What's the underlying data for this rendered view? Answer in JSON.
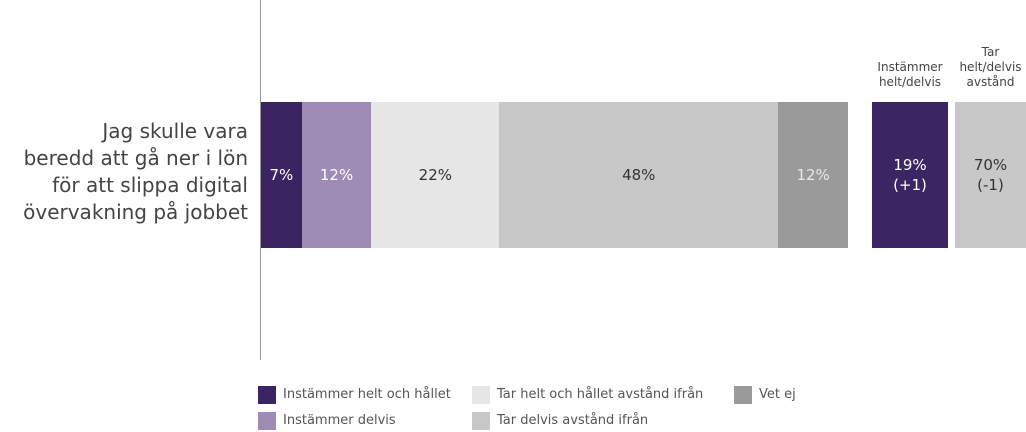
{
  "chart_data": {
    "type": "stacked-bar",
    "categories": [
      "Jag skulle vara\nberedd att gå ner i lön\nför att slippa digital\növervakning på jobbet"
    ],
    "series": [
      {
        "name": "Instämmer helt och hållet",
        "color": "#3a2462",
        "values": [
          7
        ],
        "value_labels": [
          "7%"
        ]
      },
      {
        "name": "Instämmer delvis",
        "color": "#9e8bb6",
        "values": [
          12
        ],
        "value_labels": [
          "12%"
        ]
      },
      {
        "name": "Tar helt och hållet avstånd ifrån",
        "color": "#e6e6e6",
        "values": [
          22
        ],
        "value_labels": [
          "22%"
        ]
      },
      {
        "name": "Tar delvis avstånd ifrån",
        "color": "#c8c8c8",
        "values": [
          48
        ],
        "value_labels": [
          "48%"
        ]
      },
      {
        "name": "Vet ej",
        "color": "#9a9a9a",
        "values": [
          12
        ],
        "value_labels": [
          "12%"
        ]
      }
    ],
    "summary": [
      {
        "header": "Instämmer\nhelt/delvis",
        "value": 19,
        "value_label": "19%",
        "change": "(+1)",
        "color": "#3b2563"
      },
      {
        "header": "Tar\nhelt/delvis\navstånd",
        "value": 70,
        "value_label": "70%",
        "change": "(-1)",
        "color": "#c8c8c8"
      }
    ]
  }
}
